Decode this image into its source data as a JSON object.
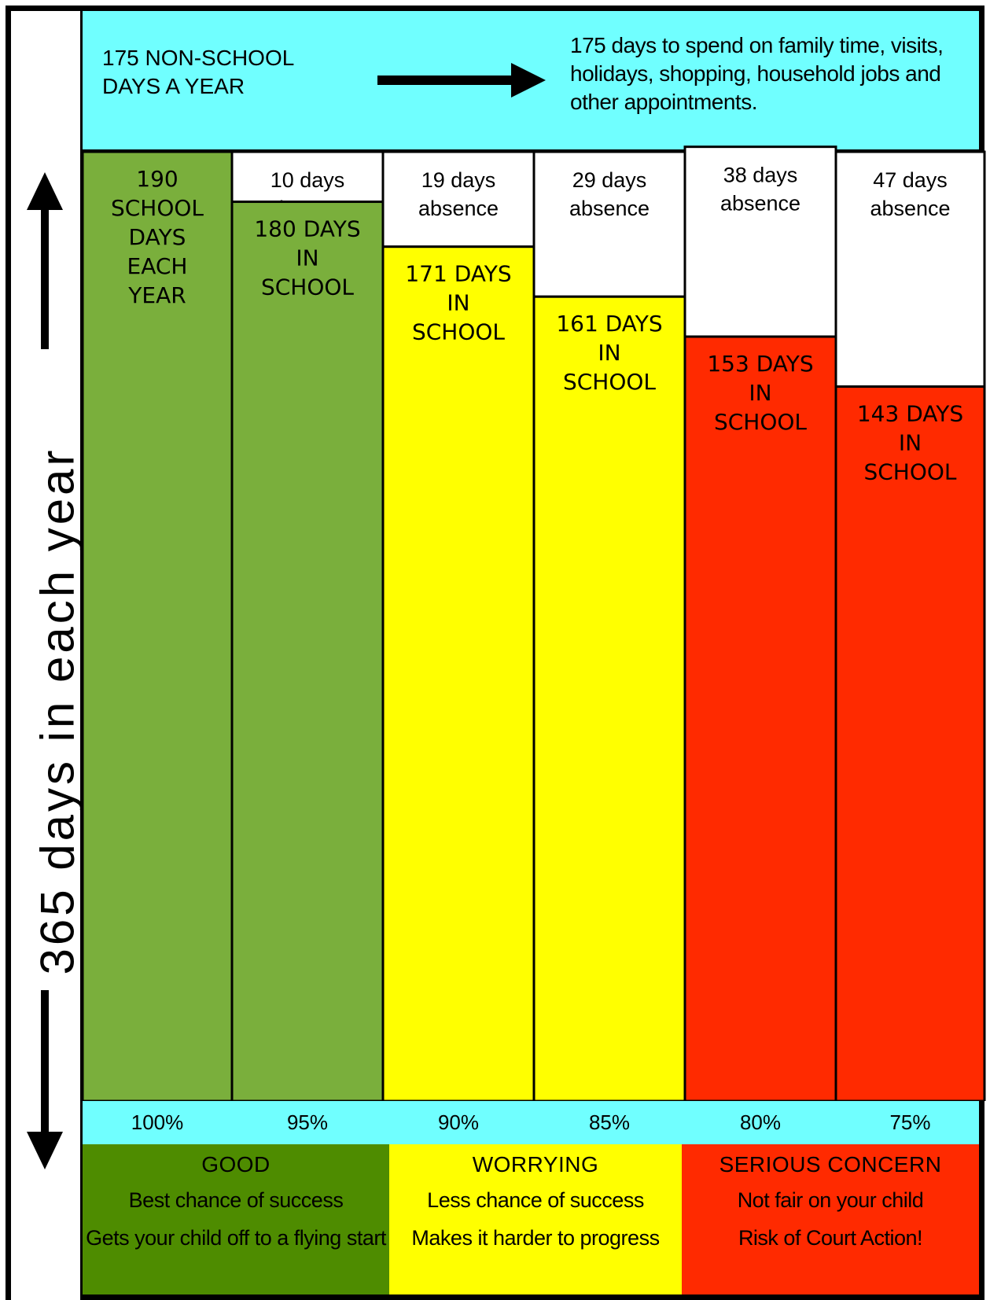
{
  "header": {
    "left_text": "175 NON-SCHOOL\nDAYS A YEAR",
    "right_text": "175 days to spend on family time, visits, holidays, shopping, household jobs and other appointments."
  },
  "y_axis_label": "365 days in each year",
  "colors": {
    "cyan": "#70ffff",
    "green_bar": "#7aaf3c",
    "yellow_bar": "#ffff00",
    "red_bar": "#ff2a00",
    "green_legend": "#4e8c00",
    "absence": "#ffffff"
  },
  "chart_data": {
    "type": "bar",
    "stacked": true,
    "ylim": [
      0,
      190
    ],
    "categories": [
      "100%",
      "95%",
      "90%",
      "85%",
      "80%",
      "75%"
    ],
    "series": [
      {
        "values": [
          190,
          180,
          171,
          161,
          153,
          143
        ],
        "labels": [
          [
            "190",
            "SCHOOL",
            "DAYS",
            "EACH",
            "YEAR"
          ],
          [
            "180 DAYS",
            "IN",
            "SCHOOL"
          ],
          [
            "171 DAYS",
            "IN",
            "SCHOOL"
          ],
          [
            "161 DAYS",
            "IN",
            "SCHOOL"
          ],
          [
            "153 DAYS",
            "IN",
            "SCHOOL"
          ],
          [
            "143 DAYS",
            "IN",
            "SCHOOL"
          ]
        ],
        "colors": [
          "#7aaf3c",
          "#7aaf3c",
          "#ffff00",
          "#ffff00",
          "#ff2a00",
          "#ff2a00"
        ]
      },
      {
        "values": [
          0,
          10,
          19,
          29,
          38,
          47
        ],
        "labels": [
          [],
          [
            "10 days",
            "absence"
          ],
          [
            "19 days",
            "absence"
          ],
          [
            "29 days",
            "absence"
          ],
          [
            "38 days",
            "absence"
          ],
          [
            "47 days",
            "absence"
          ]
        ],
        "colors": [
          "#ffffff",
          "#ffffff",
          "#ffffff",
          "#ffffff",
          "#ffffff",
          "#ffffff"
        ]
      }
    ]
  },
  "legend": [
    {
      "title": "GOOD",
      "line1": "Best chance of success",
      "line2": "Gets your child off to a flying start",
      "color": "#4e8c00"
    },
    {
      "title": "WORRYING",
      "line1": "Less chance of success",
      "line2": "Makes it harder to progress",
      "color": "#ffff00"
    },
    {
      "title": "SERIOUS CONCERN",
      "line1": "Not fair on your child",
      "line2": "Risk of Court Action!",
      "color": "#ff2a00"
    }
  ]
}
